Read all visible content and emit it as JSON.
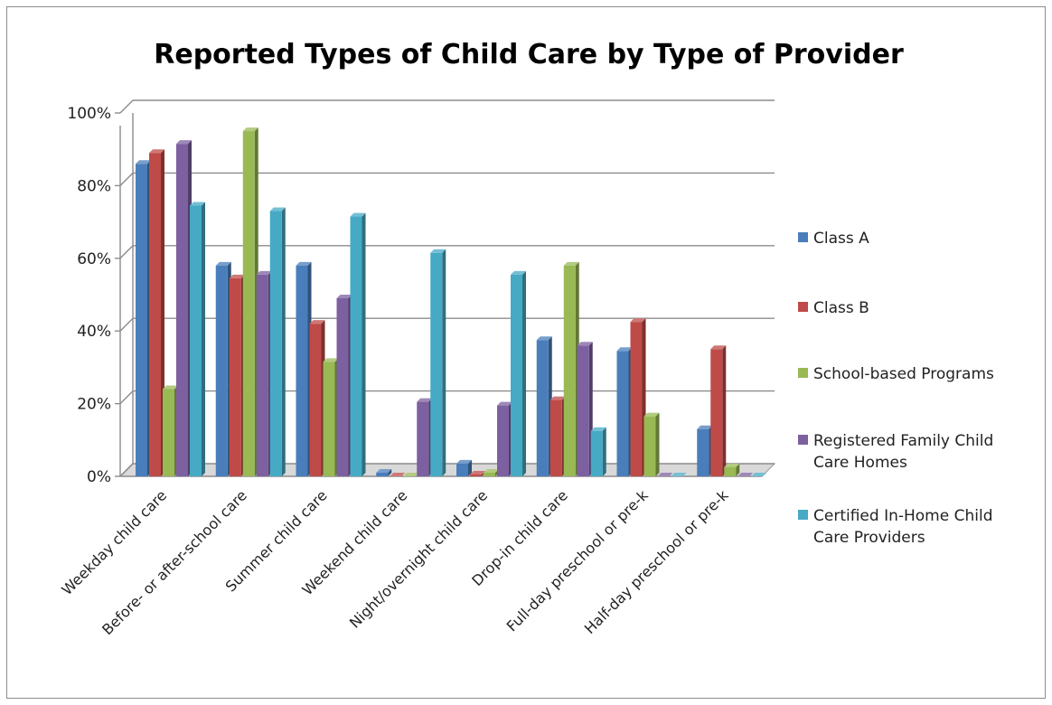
{
  "chart_data": {
    "type": "bar",
    "title": "Reported Types of Child Care by Type of Provider",
    "xlabel": "",
    "ylabel": "",
    "ylim": [
      0,
      100
    ],
    "y_ticks": [
      "0%",
      "20%",
      "40%",
      "60%",
      "80%",
      "100%"
    ],
    "grid": true,
    "legend_position": "right",
    "three_d": true,
    "categories": [
      "Weekday child care",
      "Before- or after-school care",
      "Summer child care",
      "Weekend child care",
      "Night/overnight child care",
      "Drop-in child care",
      "Full-day preschool or pre-k",
      "Half-day preschool or pre-k"
    ],
    "series": [
      {
        "name": "Class A",
        "color": "#4a7ebb",
        "values": [
          86,
          58,
          58,
          1,
          3.5,
          37.5,
          34.5,
          13
        ]
      },
      {
        "name": "Class B",
        "color": "#be4b48",
        "values": [
          89,
          54.5,
          42,
          0,
          0.5,
          21,
          42.5,
          35
        ]
      },
      {
        "name": "School-based Programs",
        "color": "#98b954",
        "values": [
          24,
          95,
          31.5,
          0,
          1,
          58,
          16.5,
          2.5
        ]
      },
      {
        "name": "Registered Family Child Care Homes",
        "color": "#7d60a0",
        "values": [
          91.5,
          55.5,
          49,
          20.5,
          19.5,
          36,
          0,
          0
        ]
      },
      {
        "name": "Certified In-Home Child Care Providers",
        "color": "#46aac5",
        "values": [
          74.5,
          73,
          71.5,
          61.5,
          55.5,
          12.5,
          0,
          0
        ]
      }
    ],
    "legend_lines": [
      [
        "Class A"
      ],
      [
        "Class B"
      ],
      [
        "School-based Programs"
      ],
      [
        "Registered Family Child",
        "Care Homes"
      ],
      [
        "Certified In-Home Child",
        "Care Providers"
      ]
    ]
  }
}
